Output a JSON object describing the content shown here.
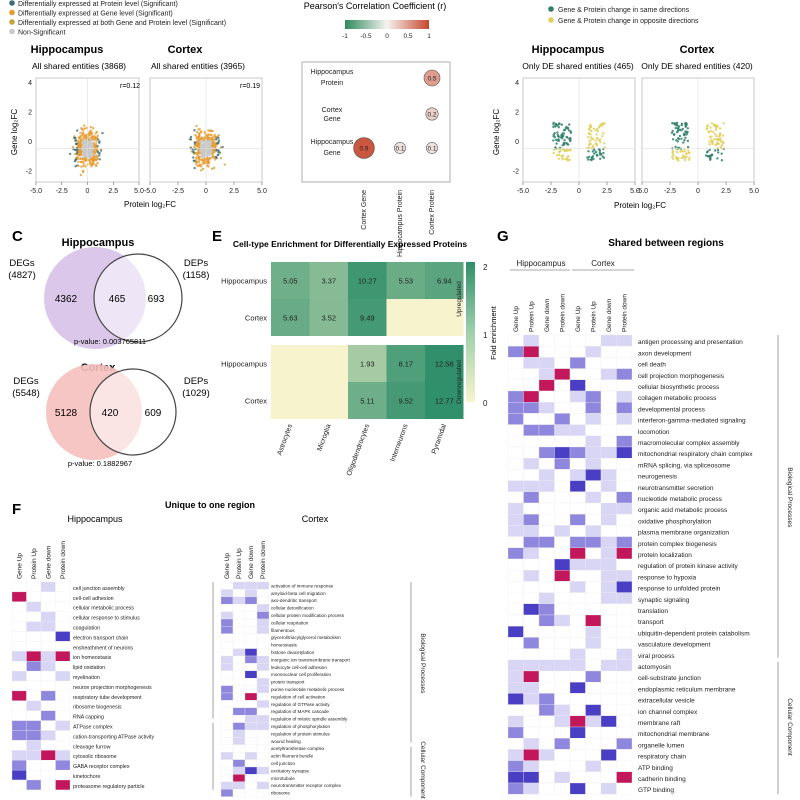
{
  "legend_top_left": {
    "entries": [
      {
        "label": "Differentially expressed at Protein level (Significant)",
        "color": "#3f6e7a"
      },
      {
        "label": "Differentially expressed at Gene level (Significant)",
        "color": "#e89a2c"
      },
      {
        "label": "Differentially expressed at both Gene and Protein level (Significant)",
        "color": "#c7a23a"
      },
      {
        "label": "Non-Significant",
        "color": "#c8c8c8"
      }
    ]
  },
  "panel_A": {
    "hippocampus": {
      "title": "Hippocampus",
      "subtitle": "All shared entities (3868)",
      "r": "r=0.12"
    },
    "cortex": {
      "title": "Cortex",
      "subtitle": "All shared entities (3965)",
      "r": "r=0.19"
    },
    "xlabel": "Protein log₂FC",
    "ylabel": "Gene log₂FC",
    "xticks": [
      "-5.0",
      "-2.5",
      "0",
      "2.5",
      "5.0"
    ],
    "yticks": [
      "4",
      "2",
      "0",
      "-2"
    ]
  },
  "panel_B": {
    "title": "Pearson's Correlation Coefficient (r)",
    "scale_ticks": [
      "-1",
      "-0.5",
      "0",
      "0.5",
      "1"
    ],
    "row_labels": [
      "Hippocampus Protein",
      "Cortex Gene",
      "Hippocampus Gene"
    ],
    "col_labels": [
      "Cortex Gene",
      "Hippocampus Protein",
      "Cortex Protein"
    ]
  },
  "panel_D": {
    "legend": [
      {
        "label": "Gene & Protein change in same directions",
        "color": "#2f7f6a"
      },
      {
        "label": "Gene & Protein change in opposite directions",
        "color": "#e2cf5a"
      }
    ],
    "hippocampus": {
      "title": "Hippocampus",
      "subtitle": "Only DE shared entities (465)"
    },
    "cortex": {
      "title": "Cortex",
      "subtitle": "Only DE shared entities (420)"
    },
    "xlabel": "Protein log₂FC",
    "ylabel": "Gene log₂FC",
    "xticks": [
      "-5.0",
      "-2.5",
      "0",
      "2.5",
      "5.0"
    ],
    "yticks": [
      "4",
      "2",
      "0",
      "-2"
    ]
  },
  "panel_C": {
    "letter": "C",
    "hippocampus": {
      "title": "Hippocampus",
      "left_label": "DEGs",
      "left_count": "(4827)",
      "right_label": "DEPs",
      "right_count": "(1158)",
      "only_left": "4362",
      "shared": "465",
      "only_right": "693",
      "pvalue": "p-value: 0.003765811"
    },
    "cortex": {
      "title": "Cortex",
      "left_label": "DEGs",
      "left_count": "(5548)",
      "right_label": "DEPs",
      "right_count": "(1029)",
      "only_left": "5128",
      "shared": "420",
      "only_right": "609",
      "pvalue": "p-value: 0.1882967"
    }
  },
  "panel_E": {
    "letter": "E",
    "title": "Cell-type Enrichment for Differentially Expressed Proteins",
    "colorbar_label": "Fold enrichment",
    "colorbar_ticks": [
      "2",
      "1",
      "0"
    ],
    "group_labels": [
      "Upregulated",
      "Downregulated"
    ]
  },
  "panel_F": {
    "letter": "F",
    "title": "Unique to one region",
    "hippocampus": {
      "title": "Hippocampus",
      "columns": [
        "Gene Up",
        "Protein Up",
        "Gene down",
        "Protein down"
      ],
      "terms": [
        "cell junction assembly",
        "cell-cell adhesion",
        "cellular metabolic process",
        "cellular response to stimulus",
        "coagulation",
        "electron transport chain",
        "ensheathment of neurons",
        "ion homeostasis",
        "lipid oxidation",
        "myelination",
        "neuron projection morphogenesis",
        "respiratory tube development",
        "ribosome biogenesis",
        "RNA capping",
        "ATPase complex",
        "cation-transporting ATPase activity",
        "cleavage furrow",
        "cytosolic ribosome",
        "GABA receptor complex",
        "kinetochore",
        "proteasome regulatory particle"
      ],
      "category_labels": [
        "Biological Processes",
        "Cellular Components"
      ]
    },
    "cortex": {
      "title": "Cortex",
      "columns": [
        "Gene Up",
        "Protein Up",
        "Gene down",
        "Protein down"
      ],
      "terms": [
        "activation of immune response",
        "amyloid-beta cell migration",
        "axo-dendritic transport",
        "cellular detoxification",
        "cellular protein modification process",
        "cellular respiration",
        "filamentous",
        "glycerol/triacylglycerol metabolism",
        "homeostasis",
        "histone deacetylation",
        "inorganic ion transmembrane transport",
        "leukocyte cell-cell adhesion",
        "mononuclear cell proliferation",
        "protein transport",
        "purine nucleotide metabolic process",
        "regulation of cell activation",
        "regulation of GTPase activity",
        "regulation of MAPK cascade",
        "regulation of mitotic spindle assembly",
        "regulation of phosphorylation",
        "regulation of protein stimulus",
        "wound healing",
        "acetyltransferase complex",
        "actin filament bundle",
        "cell junction",
        "excitatory synapse",
        "microtubule",
        "neurotransmitter receptor complex",
        "ribosome"
      ],
      "category_labels": [
        "Biological Processes",
        "Cellular Component"
      ]
    }
  },
  "panel_G": {
    "letter": "G",
    "title": "Shared between regions",
    "region_labels": [
      "Hippocampus",
      "Cortex"
    ],
    "columns": [
      "Gene Up",
      "Protein Up",
      "Gene down",
      "Protein down",
      "Gene Up",
      "Protein Up",
      "Gene down",
      "Protein down"
    ],
    "terms": [
      "antigen processing and presentation",
      "axon development",
      "cell death",
      "cell projection morphogenesis",
      "cellular biosynthetic process",
      "collagen metabolic process",
      "developmental process",
      "interferon-gamma-mediated signaling",
      "locomotion",
      "macromolecular complex assembly",
      "mitochondrial respiratory chain complex",
      "mRNA splicing, via spliceosome",
      "neurogenesis",
      "neurotransmitter secretion",
      "nucleotide metabolic process",
      "organic acid metabolic process",
      "oxidative phosphorylation",
      "plasma membrane organization",
      "protein complex biogenesis",
      "protein localization",
      "regulation of protein kinase activity",
      "response to hypoxia",
      "response to unfolded protein",
      "synaptic signaling",
      "translation",
      "transport",
      "ubiquitin-dependent protein catabolism",
      "vasculature development",
      "viral process",
      "actomyosin",
      "cell-substrate junction",
      "endoplasmic reticulum membrane",
      "extracellular vesicle",
      "ion channel complex",
      "membrane raft",
      "mitochondrial membrane",
      "organelle lumen",
      "respiratory chain",
      "ATP binding",
      "cadherin binding",
      "GTP binding"
    ],
    "category_labels": [
      "Biological Processes",
      "Cellular Component"
    ]
  },
  "chart_data": [
    {
      "type": "heatmap",
      "panel": "B",
      "title": "Pearson's Correlation Coefficient (r)",
      "rows": [
        "Hippocampus Protein",
        "Cortex Gene",
        "Hippocampus Gene"
      ],
      "cols": [
        "Cortex Gene",
        "Hippocampus Protein",
        "Cortex Protein"
      ],
      "values": [
        [
          null,
          null,
          0.5
        ],
        [
          null,
          null,
          0.2
        ],
        [
          0.9,
          0.1,
          0.1
        ]
      ],
      "scale": [
        -1,
        1
      ]
    },
    {
      "type": "heatmap",
      "panel": "E",
      "title": "Cell-type Enrichment for Differentially Expressed Proteins",
      "cols": [
        "Astrocytes",
        "Microglia",
        "Oligodendrocytes",
        "Interneurons",
        "Pyramidal"
      ],
      "groups": [
        {
          "name": "Upregulated",
          "rows": [
            "Hippocampus",
            "Cortex"
          ],
          "values": [
            [
              5.05,
              3.37,
              10.27,
              5.53,
              6.94
            ],
            [
              5.63,
              3.52,
              9.49,
              null,
              null
            ]
          ]
        },
        {
          "name": "Downregulated",
          "rows": [
            "Hippocampus",
            "Cortex"
          ],
          "values": [
            [
              null,
              null,
              1.93,
              8.17,
              12.58
            ],
            [
              null,
              null,
              5.11,
              9.52,
              12.77
            ]
          ]
        }
      ],
      "colorbar": [
        0,
        2
      ]
    },
    {
      "type": "scatter",
      "panel": "A",
      "series": [
        {
          "name": "Hippocampus"
        },
        {
          "name": "Cortex"
        }
      ],
      "xlim": [
        -5,
        5
      ],
      "ylim": [
        -2,
        4
      ]
    },
    {
      "type": "scatter",
      "panel": "D",
      "series": [
        {
          "name": "Hippocampus"
        },
        {
          "name": "Cortex"
        }
      ],
      "xlim": [
        -5,
        5
      ],
      "ylim": [
        -2,
        4
      ]
    }
  ]
}
